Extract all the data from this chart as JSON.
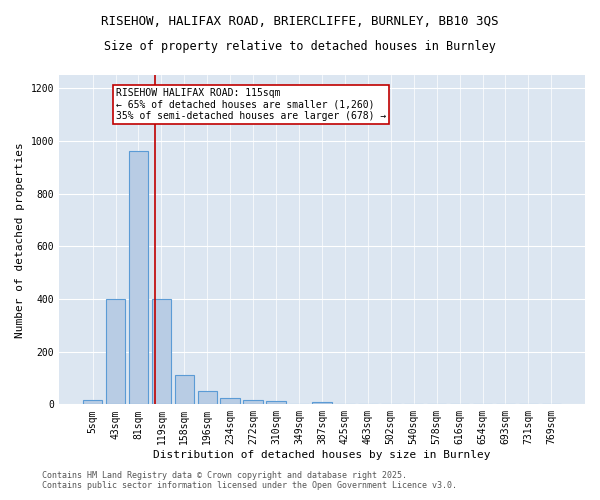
{
  "title_line1": "RISEHOW, HALIFAX ROAD, BRIERCLIFFE, BURNLEY, BB10 3QS",
  "title_line2": "Size of property relative to detached houses in Burnley",
  "xlabel": "Distribution of detached houses by size in Burnley",
  "ylabel": "Number of detached properties",
  "categories": [
    "5sqm",
    "43sqm",
    "81sqm",
    "119sqm",
    "158sqm",
    "196sqm",
    "234sqm",
    "272sqm",
    "310sqm",
    "349sqm",
    "387sqm",
    "425sqm",
    "463sqm",
    "502sqm",
    "540sqm",
    "578sqm",
    "616sqm",
    "654sqm",
    "693sqm",
    "731sqm",
    "769sqm"
  ],
  "values": [
    15,
    400,
    960,
    400,
    110,
    50,
    25,
    18,
    12,
    0,
    8,
    0,
    0,
    0,
    0,
    0,
    0,
    0,
    0,
    0,
    0
  ],
  "bar_color": "#b8cce4",
  "bar_edge_color": "#5b9bd5",
  "bar_linewidth": 0.8,
  "vline_x_index": 2.72,
  "vline_color": "#c00000",
  "annotation_text": "RISEHOW HALIFAX ROAD: 115sqm\n← 65% of detached houses are smaller (1,260)\n35% of semi-detached houses are larger (678) →",
  "annotation_box_color": "#c00000",
  "ylim": [
    0,
    1250
  ],
  "yticks": [
    0,
    200,
    400,
    600,
    800,
    1000,
    1200
  ],
  "background_color": "#dce6f1",
  "footer_text": "Contains HM Land Registry data © Crown copyright and database right 2025.\nContains public sector information licensed under the Open Government Licence v3.0.",
  "title_fontsize": 9,
  "subtitle_fontsize": 8.5,
  "axis_label_fontsize": 8,
  "tick_fontsize": 7,
  "annotation_fontsize": 7,
  "footer_fontsize": 6
}
